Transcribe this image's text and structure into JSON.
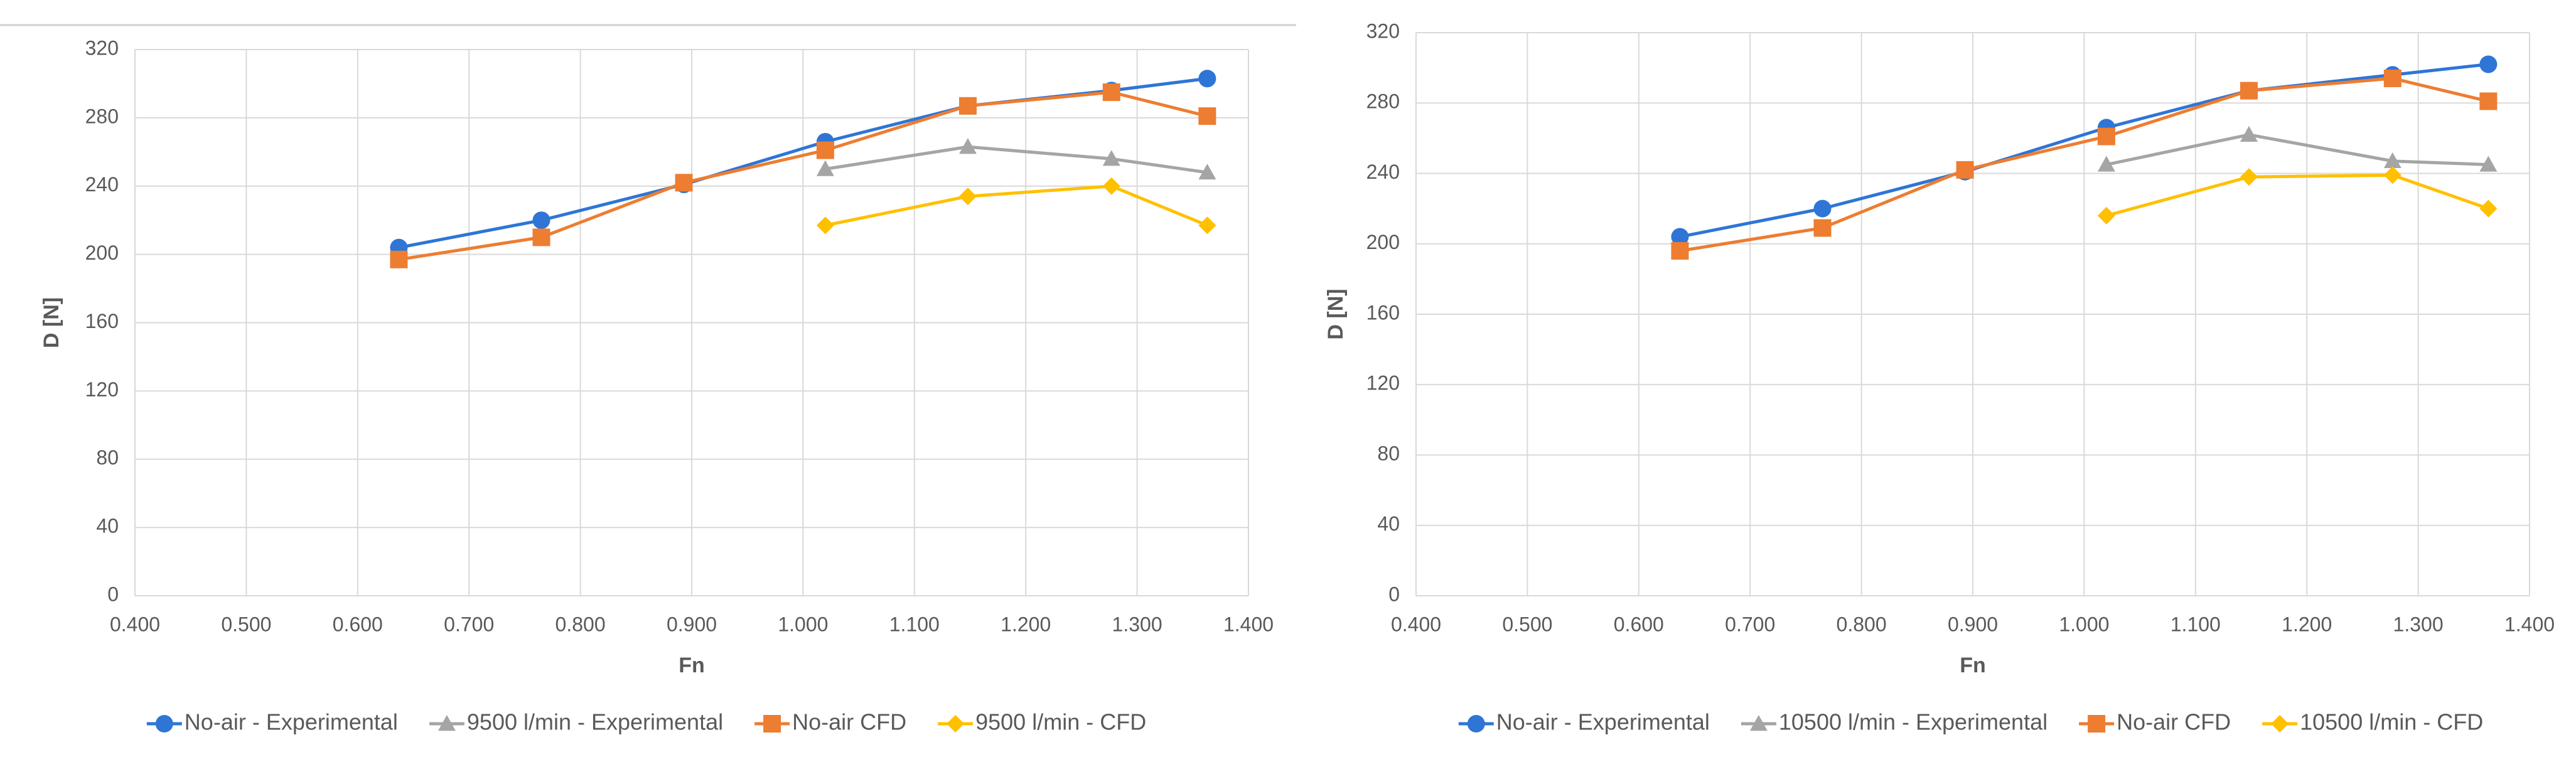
{
  "chart_data": [
    {
      "type": "line",
      "x": [
        0.637,
        0.765,
        0.893,
        1.02,
        1.148,
        1.277,
        1.363
      ],
      "series": [
        {
          "name": "No-air - Experimental",
          "color": "#2e75d6",
          "marker": "circle",
          "values": [
            204,
            220,
            241,
            266,
            287,
            296,
            303
          ]
        },
        {
          "name": "9500 l/min - Experimental",
          "color": "#a5a5a5",
          "marker": "triangle",
          "values": [
            null,
            null,
            null,
            250,
            263,
            256,
            248
          ]
        },
        {
          "name": "No-air CFD",
          "color": "#ed7d31",
          "marker": "square",
          "values": [
            197,
            210,
            242,
            261,
            287,
            295,
            281
          ]
        },
        {
          "name": "9500 l/min - CFD",
          "color": "#ffc000",
          "marker": "diamond",
          "values": [
            null,
            null,
            null,
            217,
            234,
            240,
            217
          ]
        }
      ],
      "xlabel": "Fn",
      "ylabel": "D [N]",
      "xlim": [
        0.4,
        1.4
      ],
      "ylim": [
        0,
        320
      ],
      "xticks": [
        {
          "value": 0.4,
          "label": "0.400"
        },
        {
          "value": 0.5,
          "label": "0.500"
        },
        {
          "value": 0.6,
          "label": "0.600"
        },
        {
          "value": 0.7,
          "label": "0.700"
        },
        {
          "value": 0.8,
          "label": "0.800"
        },
        {
          "value": 0.9,
          "label": "0.900"
        },
        {
          "value": 1.0,
          "label": "1.000"
        },
        {
          "value": 1.1,
          "label": "1.100"
        },
        {
          "value": 1.2,
          "label": "1.200"
        },
        {
          "value": 1.3,
          "label": "1.300"
        },
        {
          "value": 1.4,
          "label": "1.400"
        }
      ],
      "yticks": [
        0,
        40,
        80,
        120,
        160,
        200,
        240,
        280,
        320
      ],
      "grid": true,
      "legend": "bottom"
    },
    {
      "type": "line",
      "x": [
        0.637,
        0.765,
        0.893,
        1.02,
        1.148,
        1.277,
        1.363
      ],
      "series": [
        {
          "name": "No-air - Experimental",
          "color": "#2e75d6",
          "marker": "circle",
          "values": [
            204,
            220,
            241,
            266,
            287,
            296,
            302
          ]
        },
        {
          "name": "10500 l/min - Experimental",
          "color": "#a5a5a5",
          "marker": "triangle",
          "values": [
            null,
            null,
            null,
            245,
            262,
            247,
            245
          ]
        },
        {
          "name": "No-air CFD",
          "color": "#ed7d31",
          "marker": "square",
          "values": [
            196,
            209,
            242,
            261,
            287,
            294,
            281
          ]
        },
        {
          "name": "10500 l/min - CFD",
          "color": "#ffc000",
          "marker": "diamond",
          "values": [
            null,
            null,
            null,
            216,
            238,
            239,
            220
          ]
        }
      ],
      "xlabel": "Fn",
      "ylabel": "D [N]",
      "xlim": [
        0.4,
        1.4
      ],
      "ylim": [
        0,
        320
      ],
      "xticks": [
        {
          "value": 0.4,
          "label": "0.400"
        },
        {
          "value": 0.5,
          "label": "0.500"
        },
        {
          "value": 0.6,
          "label": "0.600"
        },
        {
          "value": 0.7,
          "label": "0.700"
        },
        {
          "value": 0.8,
          "label": "0.800"
        },
        {
          "value": 0.9,
          "label": "0.900"
        },
        {
          "value": 1.0,
          "label": "1.000"
        },
        {
          "value": 1.1,
          "label": "1.100"
        },
        {
          "value": 1.2,
          "label": "1.200"
        },
        {
          "value": 1.3,
          "label": "1.300"
        },
        {
          "value": 1.4,
          "label": "1.400"
        }
      ],
      "yticks": [
        0,
        40,
        80,
        120,
        160,
        200,
        240,
        280,
        320
      ],
      "grid": true,
      "legend": "bottom"
    }
  ]
}
